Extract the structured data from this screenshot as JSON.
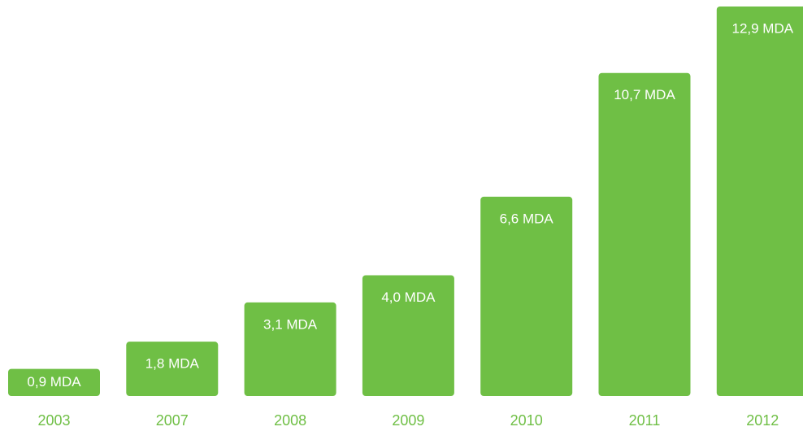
{
  "chart_data": {
    "type": "bar",
    "categories": [
      "2003",
      "2007",
      "2008",
      "2009",
      "2010",
      "2011",
      "2012"
    ],
    "values": [
      0.9,
      1.8,
      3.1,
      4.0,
      6.6,
      10.7,
      12.9
    ],
    "value_labels": [
      "0,9 MDA",
      "1,8 MDA",
      "3,1 MDA",
      "4,0 MDA",
      "6,6 MDA",
      "10,7 MDA",
      "12,9 MDA"
    ],
    "color": "#6fbf45"
  }
}
